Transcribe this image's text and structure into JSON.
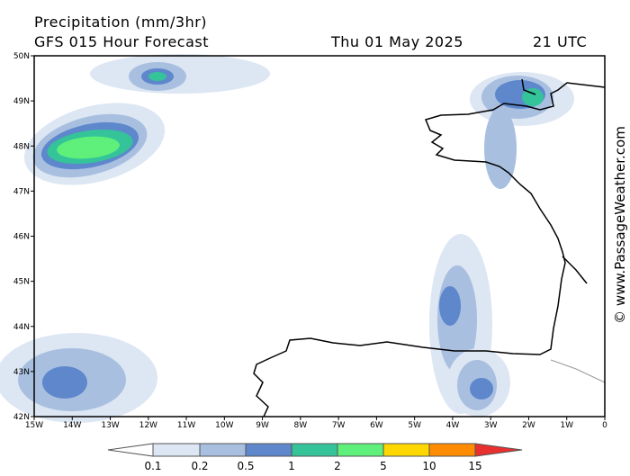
{
  "header": {
    "title": "Precipitation (mm/3hr)",
    "subtitle": "GFS 015 Hour Forecast",
    "date": "Thu 01 May 2025",
    "time": "21 UTC"
  },
  "map": {
    "lat_labels": [
      "50N",
      "49N",
      "48N",
      "47N",
      "46N",
      "45N",
      "44N",
      "43N",
      "42N"
    ],
    "lon_labels": [
      "15W",
      "14W",
      "13W",
      "12W",
      "11W",
      "10W",
      "9W",
      "8W",
      "7W",
      "6W",
      "5W",
      "4W",
      "3W",
      "2W",
      "1W",
      "0"
    ]
  },
  "legend": {
    "labels": [
      "0.1",
      "0.2",
      "0.5",
      "1",
      "2",
      "5",
      "10",
      "15"
    ]
  },
  "watermark": "© www.PassageWeather.com"
}
